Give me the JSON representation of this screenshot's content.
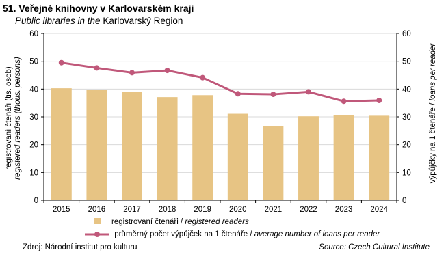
{
  "header": {
    "title": "51. Veřejné knihovny v Karlovarském kraji",
    "subtitle_italic": "Public libraries in the",
    "subtitle_normal": " Karlovarský Region"
  },
  "footer": {
    "source_cz": "Zdroj: Národní institut pro kulturu",
    "source_en": "Source: Czech Cultural Institute"
  },
  "colors": {
    "bar": "#E7C484",
    "line": "#C0587A",
    "grid": "#D9D9D9"
  },
  "chart_data": {
    "type": "bar+line",
    "categories": [
      "2015",
      "2016",
      "2017",
      "2018",
      "2019",
      "2020",
      "2021",
      "2022",
      "2023",
      "2024"
    ],
    "series": [
      {
        "name": "registrovaní čtenáři / registered readers",
        "label_cz": "registrovaní  čtenáři / ",
        "label_en": "registered readers",
        "type": "bar",
        "axis": "left",
        "values": [
          40.3,
          39.6,
          38.9,
          37.1,
          37.8,
          31.1,
          26.8,
          30.2,
          30.7,
          30.4
        ]
      },
      {
        "name": "průměrný počet výpůjček na 1 čtenáře / average number of loans per reader",
        "label_cz": "průměrný počet výpůjček na 1 čtenáře / ",
        "label_en": "average  number of loans per reader",
        "type": "line",
        "axis": "right",
        "values": [
          49.5,
          47.6,
          45.9,
          46.7,
          44.1,
          38.3,
          38.1,
          39.0,
          35.6,
          35.9
        ]
      }
    ],
    "ylabel_left_cz": "registrovaní čtenáři (tis. osob)",
    "ylabel_left_en": "registered readers (thous. persons)",
    "ylabel_right_cz": "výpůjčky na 1 čtenáře / ",
    "ylabel_right_en": "loans per reader",
    "ylim": [
      0,
      60
    ],
    "yticks": [
      "0",
      "10",
      "20",
      "30",
      "40",
      "50",
      "60"
    ],
    "grid": true,
    "legend_position": "bottom"
  }
}
